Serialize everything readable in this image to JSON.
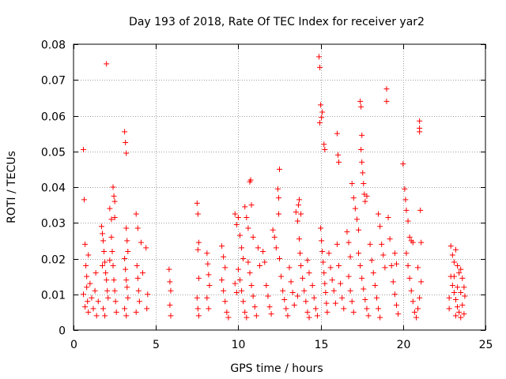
{
  "chart_data": {
    "type": "scatter",
    "title": "Day 193 of 2018, Rate Of TEC Index for receiver yar2",
    "xlabel": "GPS time / hours",
    "ylabel": "ROTI / TECUs",
    "xlim": [
      0,
      25
    ],
    "ylim": [
      0,
      0.08
    ],
    "grid": true,
    "marker": "+",
    "color": "#ff0000",
    "x_ticks": [
      {
        "value": 0,
        "label": "0"
      },
      {
        "value": 5,
        "label": "5"
      },
      {
        "value": 10,
        "label": "10"
      },
      {
        "value": 15,
        "label": "15"
      },
      {
        "value": 20,
        "label": "20"
      },
      {
        "value": 25,
        "label": "25"
      }
    ],
    "y_ticks": [
      {
        "value": 0,
        "label": "0"
      },
      {
        "value": 0.01,
        "label": "0.01"
      },
      {
        "value": 0.02,
        "label": "0.02"
      },
      {
        "value": 0.03,
        "label": "0.03"
      },
      {
        "value": 0.04,
        "label": "0.04"
      },
      {
        "value": 0.05,
        "label": "0.05"
      },
      {
        "value": 0.06,
        "label": "0.06"
      },
      {
        "value": 0.07,
        "label": "0.07"
      },
      {
        "value": 0.08,
        "label": "0.08"
      }
    ],
    "series": [
      {
        "name": "ROTI yar2",
        "points": [
          [
            0.6,
            0.0505
          ],
          [
            0.65,
            0.0365
          ],
          [
            0.7,
            0.024
          ],
          [
            0.75,
            0.018
          ],
          [
            0.8,
            0.012
          ],
          [
            0.85,
            0.008
          ],
          [
            0.9,
            0.005
          ],
          [
            0.6,
            0.01
          ],
          [
            0.7,
            0.0065
          ],
          [
            0.8,
            0.015
          ],
          [
            0.9,
            0.021
          ],
          [
            1.0,
            0.013
          ],
          [
            1.1,
            0.009
          ],
          [
            1.2,
            0.006
          ],
          [
            1.3,
            0.011
          ],
          [
            1.35,
            0.016
          ],
          [
            1.4,
            0.004
          ],
          [
            1.5,
            0.008
          ],
          [
            1.7,
            0.029
          ],
          [
            1.75,
            0.027
          ],
          [
            1.8,
            0.025
          ],
          [
            1.85,
            0.022
          ],
          [
            1.9,
            0.019
          ],
          [
            1.95,
            0.016
          ],
          [
            2.0,
            0.014
          ],
          [
            2.05,
            0.011
          ],
          [
            2.1,
            0.009
          ],
          [
            1.8,
            0.006
          ],
          [
            1.9,
            0.004
          ],
          [
            2.0,
            0.0745
          ],
          [
            1.75,
            0.018
          ],
          [
            2.2,
            0.034
          ],
          [
            2.3,
            0.031
          ],
          [
            2.4,
            0.04
          ],
          [
            2.45,
            0.0375
          ],
          [
            2.5,
            0.036
          ],
          [
            2.3,
            0.026
          ],
          [
            2.35,
            0.022
          ],
          [
            2.4,
            0.018
          ],
          [
            2.45,
            0.014
          ],
          [
            2.5,
            0.011
          ],
          [
            2.55,
            0.008
          ],
          [
            2.6,
            0.005
          ],
          [
            2.2,
            0.0195
          ],
          [
            2.5,
            0.0315
          ],
          [
            3.1,
            0.0555
          ],
          [
            3.15,
            0.0525
          ],
          [
            3.2,
            0.0495
          ],
          [
            3.2,
            0.0285
          ],
          [
            3.25,
            0.025
          ],
          [
            3.3,
            0.022
          ],
          [
            3.1,
            0.02
          ],
          [
            3.15,
            0.017
          ],
          [
            3.2,
            0.014
          ],
          [
            3.25,
            0.012
          ],
          [
            3.3,
            0.009
          ],
          [
            3.1,
            0.006
          ],
          [
            3.2,
            0.004
          ],
          [
            3.8,
            0.0325
          ],
          [
            3.9,
            0.0285
          ],
          [
            3.85,
            0.018
          ],
          [
            3.9,
            0.0145
          ],
          [
            3.95,
            0.011
          ],
          [
            4.0,
            0.008
          ],
          [
            3.8,
            0.005
          ],
          [
            4.1,
            0.0245
          ],
          [
            4.2,
            0.016
          ],
          [
            4.4,
            0.023
          ],
          [
            4.5,
            0.01
          ],
          [
            4.45,
            0.006
          ],
          [
            5.8,
            0.017
          ],
          [
            5.85,
            0.0135
          ],
          [
            5.9,
            0.011
          ],
          [
            5.85,
            0.007
          ],
          [
            5.9,
            0.004
          ],
          [
            7.5,
            0.0355
          ],
          [
            7.55,
            0.0325
          ],
          [
            7.6,
            0.0245
          ],
          [
            7.55,
            0.0225
          ],
          [
            7.6,
            0.0145
          ],
          [
            7.5,
            0.009
          ],
          [
            7.55,
            0.006
          ],
          [
            7.6,
            0.004
          ],
          [
            8.1,
            0.0215
          ],
          [
            8.15,
            0.0185
          ],
          [
            8.2,
            0.0155
          ],
          [
            8.25,
            0.0125
          ],
          [
            8.1,
            0.009
          ],
          [
            8.2,
            0.006
          ],
          [
            9.0,
            0.0235
          ],
          [
            9.1,
            0.0205
          ],
          [
            9.2,
            0.0175
          ],
          [
            9.0,
            0.014
          ],
          [
            9.1,
            0.011
          ],
          [
            9.2,
            0.008
          ],
          [
            9.3,
            0.005
          ],
          [
            9.4,
            0.0035
          ],
          [
            9.8,
            0.0325
          ],
          [
            9.9,
            0.0295
          ],
          [
            10.0,
            0.0315
          ],
          [
            10.1,
            0.0265
          ],
          [
            10.2,
            0.023
          ],
          [
            10.3,
            0.02
          ],
          [
            10.4,
            0.0345
          ],
          [
            10.5,
            0.0315
          ],
          [
            10.6,
            0.0285
          ],
          [
            10.7,
            0.0415
          ],
          [
            10.75,
            0.042
          ],
          [
            10.8,
            0.035
          ],
          [
            10.9,
            0.026
          ],
          [
            10.0,
            0.017
          ],
          [
            10.1,
            0.014
          ],
          [
            10.2,
            0.011
          ],
          [
            10.3,
            0.008
          ],
          [
            10.4,
            0.005
          ],
          [
            10.5,
            0.0035
          ],
          [
            10.6,
            0.019
          ],
          [
            10.7,
            0.016
          ],
          [
            10.8,
            0.0125
          ],
          [
            10.9,
            0.0095
          ],
          [
            11.0,
            0.0065
          ],
          [
            11.1,
            0.004
          ],
          [
            9.8,
            0.013
          ],
          [
            9.9,
            0.0105
          ],
          [
            11.2,
            0.023
          ],
          [
            11.3,
            0.018
          ],
          [
            11.5,
            0.022
          ],
          [
            11.6,
            0.019
          ],
          [
            11.7,
            0.0125
          ],
          [
            11.8,
            0.0095
          ],
          [
            11.9,
            0.0065
          ],
          [
            12.0,
            0.0045
          ],
          [
            12.1,
            0.028
          ],
          [
            12.2,
            0.026
          ],
          [
            12.3,
            0.023
          ],
          [
            12.4,
            0.0395
          ],
          [
            12.45,
            0.037
          ],
          [
            12.5,
            0.045
          ],
          [
            12.45,
            0.0325
          ],
          [
            12.5,
            0.02
          ],
          [
            12.6,
            0.015
          ],
          [
            12.7,
            0.011
          ],
          [
            12.8,
            0.0085
          ],
          [
            12.9,
            0.006
          ],
          [
            13.0,
            0.004
          ],
          [
            13.1,
            0.0175
          ],
          [
            13.2,
            0.0135
          ],
          [
            13.3,
            0.0105
          ],
          [
            13.4,
            0.007
          ],
          [
            13.5,
            0.033
          ],
          [
            13.6,
            0.0305
          ],
          [
            13.65,
            0.035
          ],
          [
            13.7,
            0.0365
          ],
          [
            13.8,
            0.0325
          ],
          [
            13.7,
            0.0255
          ],
          [
            13.75,
            0.0215
          ],
          [
            13.8,
            0.018
          ],
          [
            13.9,
            0.0145
          ],
          [
            14.0,
            0.011
          ],
          [
            14.1,
            0.008
          ],
          [
            14.2,
            0.005
          ],
          [
            14.3,
            0.0035
          ],
          [
            13.6,
            0.0095
          ],
          [
            14.2,
            0.0195
          ],
          [
            14.3,
            0.016
          ],
          [
            14.5,
            0.0125
          ],
          [
            14.6,
            0.009
          ],
          [
            14.7,
            0.006
          ],
          [
            14.8,
            0.004
          ],
          [
            14.9,
            0.0765
          ],
          [
            14.95,
            0.0735
          ],
          [
            15.0,
            0.063
          ],
          [
            15.05,
            0.0595
          ],
          [
            14.95,
            0.058
          ],
          [
            15.1,
            0.061
          ],
          [
            15.2,
            0.052
          ],
          [
            15.25,
            0.0505
          ],
          [
            15.0,
            0.0285
          ],
          [
            15.05,
            0.025
          ],
          [
            15.1,
            0.022
          ],
          [
            15.15,
            0.019
          ],
          [
            15.2,
            0.016
          ],
          [
            15.25,
            0.013
          ],
          [
            15.3,
            0.0105
          ],
          [
            15.35,
            0.0075
          ],
          [
            15.4,
            0.005
          ],
          [
            15.5,
            0.0215
          ],
          [
            15.6,
            0.0175
          ],
          [
            15.7,
            0.014
          ],
          [
            15.8,
            0.011
          ],
          [
            15.9,
            0.0075
          ],
          [
            16.0,
            0.055
          ],
          [
            16.05,
            0.049
          ],
          [
            16.1,
            0.047
          ],
          [
            16.0,
            0.024
          ],
          [
            16.1,
            0.018
          ],
          [
            16.2,
            0.013
          ],
          [
            16.3,
            0.009
          ],
          [
            16.4,
            0.006
          ],
          [
            16.6,
            0.0275
          ],
          [
            16.7,
            0.0245
          ],
          [
            16.8,
            0.0205
          ],
          [
            16.9,
            0.041
          ],
          [
            17.0,
            0.037
          ],
          [
            17.1,
            0.034
          ],
          [
            17.2,
            0.031
          ],
          [
            17.3,
            0.028
          ],
          [
            17.4,
            0.064
          ],
          [
            17.45,
            0.0625
          ],
          [
            17.5,
            0.0545
          ],
          [
            17.45,
            0.0505
          ],
          [
            17.5,
            0.047
          ],
          [
            17.55,
            0.044
          ],
          [
            17.6,
            0.041
          ],
          [
            17.65,
            0.038
          ],
          [
            17.7,
            0.036
          ],
          [
            17.8,
            0.0375
          ],
          [
            17.3,
            0.0215
          ],
          [
            17.4,
            0.018
          ],
          [
            17.5,
            0.0145
          ],
          [
            17.6,
            0.0115
          ],
          [
            17.7,
            0.0085
          ],
          [
            17.8,
            0.006
          ],
          [
            17.9,
            0.004
          ],
          [
            16.7,
            0.015
          ],
          [
            16.8,
            0.011
          ],
          [
            16.9,
            0.008
          ],
          [
            17.0,
            0.005
          ],
          [
            18.0,
            0.024
          ],
          [
            18.1,
            0.0195
          ],
          [
            18.2,
            0.016
          ],
          [
            18.3,
            0.0125
          ],
          [
            18.4,
            0.009
          ],
          [
            18.5,
            0.006
          ],
          [
            18.6,
            0.0035
          ],
          [
            18.5,
            0.0325
          ],
          [
            18.6,
            0.029
          ],
          [
            18.7,
            0.024
          ],
          [
            18.8,
            0.021
          ],
          [
            18.9,
            0.0175
          ],
          [
            19.0,
            0.0675
          ],
          [
            19.0,
            0.064
          ],
          [
            19.1,
            0.0315
          ],
          [
            19.2,
            0.0255
          ],
          [
            19.3,
            0.018
          ],
          [
            19.4,
            0.0135
          ],
          [
            19.5,
            0.01
          ],
          [
            19.6,
            0.007
          ],
          [
            19.7,
            0.0045
          ],
          [
            19.5,
            0.0215
          ],
          [
            19.6,
            0.0185
          ],
          [
            20.0,
            0.0465
          ],
          [
            20.1,
            0.0395
          ],
          [
            20.15,
            0.0365
          ],
          [
            20.2,
            0.0335
          ],
          [
            20.3,
            0.0305
          ],
          [
            20.4,
            0.026
          ],
          [
            20.5,
            0.025
          ],
          [
            20.6,
            0.0245
          ],
          [
            20.2,
            0.0215
          ],
          [
            20.3,
            0.018
          ],
          [
            20.4,
            0.0145
          ],
          [
            20.5,
            0.011
          ],
          [
            20.6,
            0.008
          ],
          [
            20.7,
            0.005
          ],
          [
            20.8,
            0.0035
          ],
          [
            20.9,
            0.0175
          ],
          [
            21.0,
            0.0585
          ],
          [
            21.0,
            0.0565
          ],
          [
            21.0,
            0.0555
          ],
          [
            21.05,
            0.0335
          ],
          [
            21.1,
            0.0245
          ],
          [
            21.1,
            0.0135
          ],
          [
            21.0,
            0.009
          ],
          [
            20.9,
            0.006
          ],
          [
            22.9,
            0.0235
          ],
          [
            23.0,
            0.021
          ],
          [
            23.1,
            0.019
          ],
          [
            23.2,
            0.0225
          ],
          [
            23.3,
            0.018
          ],
          [
            23.4,
            0.016
          ],
          [
            22.9,
            0.015
          ],
          [
            23.0,
            0.0125
          ],
          [
            23.1,
            0.0105
          ],
          [
            23.2,
            0.0085
          ],
          [
            23.3,
            0.0065
          ],
          [
            23.4,
            0.005
          ],
          [
            23.5,
            0.0035
          ],
          [
            23.6,
            0.0145
          ],
          [
            23.7,
            0.012
          ],
          [
            23.75,
            0.0095
          ],
          [
            23.6,
            0.007
          ],
          [
            23.7,
            0.0045
          ],
          [
            22.8,
            0.009
          ],
          [
            22.8,
            0.006
          ],
          [
            23.5,
            0.017
          ],
          [
            23.1,
            0.015
          ],
          [
            23.3,
            0.012
          ],
          [
            23.5,
            0.0105
          ],
          [
            23.2,
            0.004
          ]
        ]
      }
    ]
  }
}
